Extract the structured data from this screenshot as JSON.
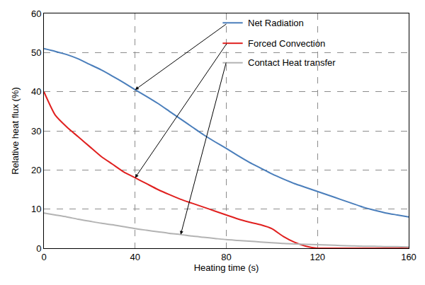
{
  "chart_data": {
    "type": "line",
    "x_label": "Heating time (s)",
    "y_label": "Relative heat flux (%)",
    "x": [
      0,
      5,
      10,
      15,
      20,
      25,
      30,
      35,
      40,
      45,
      50,
      55,
      60,
      65,
      70,
      75,
      80,
      85,
      90,
      95,
      100,
      105,
      110,
      115,
      120,
      125,
      130,
      135,
      140,
      145,
      150,
      155,
      160
    ],
    "series": [
      {
        "name": "Net Radiation",
        "color": "#4a7ebb",
        "values": [
          51,
          50.3,
          49.5,
          48.4,
          47,
          45.6,
          44,
          42.3,
          40.5,
          38.8,
          37,
          35,
          33,
          31,
          29,
          27.2,
          25.5,
          23.7,
          22,
          20.5,
          19,
          17.7,
          16.5,
          15.5,
          14.5,
          13.5,
          12.5,
          11.5,
          10.5,
          9.7,
          9,
          8.5,
          8
        ]
      },
      {
        "name": "Forced Convection",
        "color": "#e0201f",
        "values": [
          40,
          34,
          31,
          28.5,
          26,
          23.5,
          21.5,
          19.5,
          18,
          16.5,
          15,
          13.7,
          12.5,
          11.5,
          10.5,
          9.5,
          8.5,
          7.5,
          6.7,
          6,
          5,
          3,
          1.5,
          0.5,
          0,
          0,
          0,
          0,
          0,
          0,
          0,
          0,
          0
        ]
      },
      {
        "name": "Contact Heat transfer",
        "color": "#b3b3b3",
        "values": [
          9,
          8.5,
          8,
          7.4,
          6.9,
          6.4,
          6,
          5.5,
          5,
          4.6,
          4.2,
          3.8,
          3.5,
          3.1,
          2.8,
          2.5,
          2.2,
          2,
          1.8,
          1.6,
          1.4,
          1.2,
          1.1,
          1,
          0.9,
          0.8,
          0.7,
          0.6,
          0.5,
          0.5,
          0.4,
          0.4,
          0.3
        ]
      }
    ],
    "xlim": [
      0,
      160
    ],
    "xticks": [
      0,
      40,
      80,
      120,
      160
    ],
    "ylim": [
      0,
      60
    ],
    "yticks": [
      0,
      10,
      20,
      30,
      40,
      50,
      60
    ],
    "grid": true
  }
}
